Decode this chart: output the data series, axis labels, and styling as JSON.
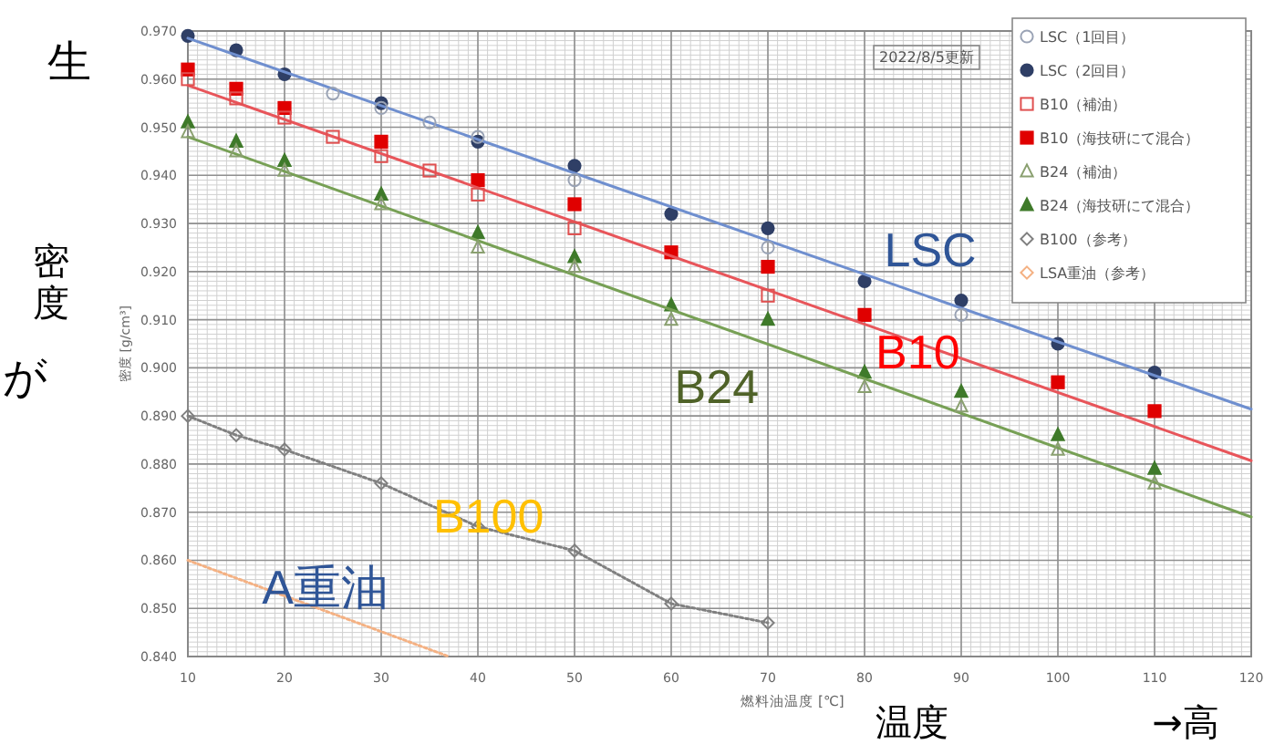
{
  "chart_data": {
    "type": "scatter",
    "xlabel": "燃料油温度 [℃]",
    "ylabel": "密度 [g/cm³]",
    "xlim": [
      10,
      120
    ],
    "ylim": [
      0.84,
      0.97
    ],
    "xticks": [
      10,
      20,
      30,
      40,
      50,
      60,
      70,
      80,
      90,
      100,
      110,
      120
    ],
    "yticks": [
      {
        "value": 0.84,
        "label": "0.840"
      },
      {
        "value": 0.85,
        "label": "0.850"
      },
      {
        "value": 0.86,
        "label": "0.860"
      },
      {
        "value": 0.87,
        "label": "0.870"
      },
      {
        "value": 0.88,
        "label": "0.880"
      },
      {
        "value": 0.89,
        "label": "0.890"
      },
      {
        "value": 0.9,
        "label": "0.900"
      },
      {
        "value": 0.91,
        "label": "0.910"
      },
      {
        "value": 0.92,
        "label": "0.920"
      },
      {
        "value": 0.93,
        "label": "0.930"
      },
      {
        "value": 0.94,
        "label": "0.940"
      },
      {
        "value": 0.95,
        "label": "0.950"
      },
      {
        "value": 0.96,
        "label": "0.960"
      },
      {
        "value": 0.97,
        "label": "0.970"
      }
    ],
    "grid": true,
    "legend": "top right",
    "series": [
      {
        "name": "LSC（1回目）",
        "marker": "circle",
        "color": "#9aa3b5",
        "x": [
          25,
          30,
          35,
          40,
          50,
          70,
          90
        ],
        "values": [
          0.957,
          0.954,
          0.951,
          0.948,
          0.939,
          0.925,
          0.911
        ]
      },
      {
        "name": "LSC（2回目）",
        "marker": "circle",
        "color": "#2f3f66",
        "x": [
          10,
          15,
          20,
          30,
          40,
          50,
          60,
          70,
          80,
          90,
          100,
          110
        ],
        "values": [
          0.969,
          0.966,
          0.961,
          0.955,
          0.947,
          0.942,
          0.932,
          0.929,
          0.918,
          0.914,
          0.905,
          0.899
        ]
      },
      {
        "name": "B10（補油）",
        "marker": "square",
        "color": "#e05050",
        "x": [
          10,
          15,
          20,
          25,
          30,
          35,
          40,
          50,
          70
        ],
        "values": [
          0.96,
          0.956,
          0.952,
          0.948,
          0.944,
          0.941,
          0.936,
          0.929,
          0.915
        ]
      },
      {
        "name": "B10（海技研にて混合）",
        "marker": "square",
        "color": "#e00000",
        "x": [
          10,
          15,
          20,
          30,
          40,
          50,
          60,
          70,
          80,
          90,
          100,
          110
        ],
        "values": [
          0.962,
          0.958,
          0.954,
          0.947,
          0.939,
          0.934,
          0.924,
          0.921,
          0.911,
          null,
          0.897,
          0.891
        ]
      },
      {
        "name": "B24（補油）",
        "marker": "triangle",
        "color": "#8aa070",
        "x": [
          10,
          15,
          20,
          30,
          40,
          50,
          60,
          80,
          90,
          100,
          110
        ],
        "values": [
          0.949,
          0.945,
          0.941,
          0.934,
          0.925,
          0.921,
          0.91,
          0.896,
          0.892,
          0.883,
          0.876
        ]
      },
      {
        "name": "B24（海技研にて混合）",
        "marker": "triangle",
        "color": "#3f7a2a",
        "x": [
          10,
          15,
          20,
          30,
          40,
          50,
          60,
          70,
          80,
          90,
          100,
          110
        ],
        "values": [
          0.951,
          0.947,
          0.943,
          0.936,
          0.928,
          0.923,
          0.913,
          0.91,
          0.899,
          0.895,
          0.886,
          0.879
        ]
      },
      {
        "name": "B100（参考）",
        "type": "line",
        "marker": "diamond",
        "line_style": "dotted",
        "color": "#808080",
        "x": [
          10,
          15,
          20,
          30,
          40,
          50,
          60,
          70
        ],
        "values": [
          0.89,
          0.886,
          0.883,
          0.876,
          0.867,
          0.862,
          0.851,
          0.847
        ]
      },
      {
        "name": "LSA重油（参考）",
        "type": "line",
        "marker": "none",
        "line_style": "dotted",
        "color": "#f4b183",
        "x": [
          10,
          37
        ],
        "values": [
          0.86,
          0.84
        ]
      },
      {
        "type": "line",
        "marker": "none",
        "color": "#6f8fcf",
        "x": [
          10,
          120
        ],
        "values": [
          0.9685,
          0.8914
        ]
      },
      {
        "type": "line",
        "marker": "none",
        "color": "#e8555a",
        "x": [
          10,
          120
        ],
        "values": [
          0.9587,
          0.8807
        ]
      },
      {
        "type": "line",
        "marker": "none",
        "color": "#77a055",
        "x": [
          10,
          120
        ],
        "values": [
          0.948,
          0.869
        ]
      }
    ],
    "annotations": [
      "2022/8/5更新",
      "LSC",
      "B10",
      "B24",
      "B100",
      "A重油",
      "生",
      "密度",
      "が",
      "温度",
      "→高"
    ]
  }
}
